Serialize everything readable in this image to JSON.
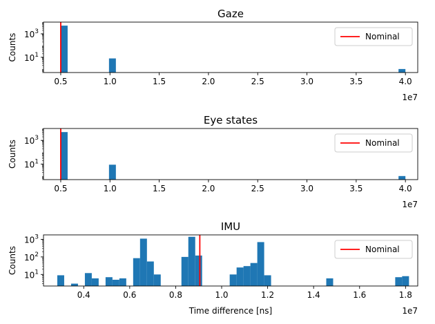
{
  "chart_data": [
    {
      "type": "bar",
      "title": "Gaze",
      "xlabel": "",
      "ylabel": "Counts",
      "x_offset_text": "1e7",
      "xscale": "linear",
      "yscale": "log",
      "xlim": [
        0.325,
        4.125
      ],
      "ylim": [
        0.5,
        10000
      ],
      "x_ticks": [
        {
          "value": 0.5,
          "label": "0.5"
        },
        {
          "value": 1.0,
          "label": "1.0"
        },
        {
          "value": 1.5,
          "label": "1.5"
        },
        {
          "value": 2.0,
          "label": "2.0"
        },
        {
          "value": 2.5,
          "label": "2.5"
        },
        {
          "value": 3.0,
          "label": "3.0"
        },
        {
          "value": 3.5,
          "label": "3.5"
        },
        {
          "value": 4.0,
          "label": "4.0"
        }
      ],
      "y_ticks": [
        {
          "value": 10,
          "label": "10^1"
        },
        {
          "value": 1000,
          "label": "10^3"
        }
      ],
      "bin_width": 0.07,
      "bars": [
        {
          "x": 0.535,
          "count": 5000
        },
        {
          "x": 1.025,
          "count": 8
        },
        {
          "x": 3.965,
          "count": 1
        }
      ],
      "bar_color": "#1f77b4",
      "nominal": 0.5,
      "nominal_color": "#ff0000",
      "legend": {
        "label": "Nominal",
        "position": "upper right"
      }
    },
    {
      "type": "bar",
      "title": "Eye states",
      "xlabel": "",
      "ylabel": "Counts",
      "x_offset_text": "1e7",
      "xscale": "linear",
      "yscale": "log",
      "xlim": [
        0.325,
        4.125
      ],
      "ylim": [
        0.5,
        10000
      ],
      "x_ticks": [
        {
          "value": 0.5,
          "label": "0.5"
        },
        {
          "value": 1.0,
          "label": "1.0"
        },
        {
          "value": 1.5,
          "label": "1.5"
        },
        {
          "value": 2.0,
          "label": "2.0"
        },
        {
          "value": 2.5,
          "label": "2.5"
        },
        {
          "value": 3.0,
          "label": "3.0"
        },
        {
          "value": 3.5,
          "label": "3.5"
        },
        {
          "value": 4.0,
          "label": "4.0"
        }
      ],
      "y_ticks": [
        {
          "value": 10,
          "label": "10^1"
        },
        {
          "value": 1000,
          "label": "10^3"
        }
      ],
      "bin_width": 0.07,
      "bars": [
        {
          "x": 0.535,
          "count": 5000
        },
        {
          "x": 1.025,
          "count": 9
        },
        {
          "x": 3.965,
          "count": 1
        }
      ],
      "bar_color": "#1f77b4",
      "nominal": 0.5,
      "nominal_color": "#ff0000",
      "legend": {
        "label": "Nominal",
        "position": "upper right"
      }
    },
    {
      "type": "bar",
      "title": "IMU",
      "xlabel": "Time difference [ns]",
      "ylabel": "Counts",
      "x_offset_text": "1e7",
      "xscale": "linear",
      "yscale": "log",
      "xlim": [
        0.225,
        1.853
      ],
      "ylim": [
        2.2,
        1800
      ],
      "x_ticks": [
        {
          "value": 0.4,
          "label": "0.4"
        },
        {
          "value": 0.6,
          "label": "0.6"
        },
        {
          "value": 0.8,
          "label": "0.8"
        },
        {
          "value": 1.0,
          "label": "1.0"
        },
        {
          "value": 1.2,
          "label": "1.2"
        },
        {
          "value": 1.4,
          "label": "1.4"
        },
        {
          "value": 1.6,
          "label": "1.6"
        },
        {
          "value": 1.8,
          "label": "1.8"
        }
      ],
      "y_ticks": [
        {
          "value": 10,
          "label": "10^1"
        },
        {
          "value": 100,
          "label": "10^2"
        },
        {
          "value": 1000,
          "label": "10^3"
        }
      ],
      "bin_width": 0.03,
      "bars": [
        {
          "x": 0.3,
          "count": 9
        },
        {
          "x": 0.36,
          "count": 3
        },
        {
          "x": 0.42,
          "count": 12
        },
        {
          "x": 0.45,
          "count": 6
        },
        {
          "x": 0.51,
          "count": 7
        },
        {
          "x": 0.54,
          "count": 5
        },
        {
          "x": 0.57,
          "count": 6
        },
        {
          "x": 0.63,
          "count": 85
        },
        {
          "x": 0.66,
          "count": 1100
        },
        {
          "x": 0.69,
          "count": 55
        },
        {
          "x": 0.72,
          "count": 10
        },
        {
          "x": 0.84,
          "count": 100
        },
        {
          "x": 0.87,
          "count": 1400
        },
        {
          "x": 0.9,
          "count": 120
        },
        {
          "x": 1.05,
          "count": 10
        },
        {
          "x": 1.08,
          "count": 25
        },
        {
          "x": 1.11,
          "count": 30
        },
        {
          "x": 1.14,
          "count": 45
        },
        {
          "x": 1.17,
          "count": 700
        },
        {
          "x": 1.2,
          "count": 9
        },
        {
          "x": 1.47,
          "count": 6
        },
        {
          "x": 1.77,
          "count": 7
        },
        {
          "x": 1.8,
          "count": 8
        }
      ],
      "bar_color": "#1f77b4",
      "nominal": 0.905,
      "nominal_color": "#ff0000",
      "legend": {
        "label": "Nominal",
        "position": "upper right"
      }
    }
  ]
}
